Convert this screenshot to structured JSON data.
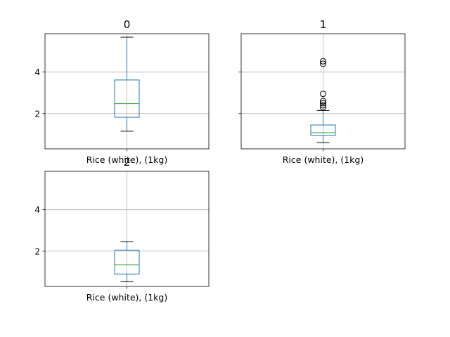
{
  "figure": {
    "background": "#ffffff"
  },
  "chart_data": [
    {
      "type": "boxplot",
      "title": "0",
      "categories": [
        "Rice (white), (1kg)"
      ],
      "ylim": [
        0.3,
        5.85
      ],
      "yticks": [
        2,
        4
      ],
      "grid": true,
      "boxes": [
        {
          "category": "Rice (white), (1kg)",
          "whisker_low": 1.15,
          "q1": 1.82,
          "median": 2.48,
          "q3": 3.62,
          "whisker_high": 5.68,
          "outliers": []
        }
      ]
    },
    {
      "type": "boxplot",
      "title": "1",
      "categories": [
        "Rice (white), (1kg)"
      ],
      "ylim": [
        0.3,
        5.85
      ],
      "yticks": [
        2,
        4
      ],
      "show_tick_labels": false,
      "grid": true,
      "boxes": [
        {
          "category": "Rice (white), (1kg)",
          "whisker_low": 0.6,
          "q1": 0.95,
          "median": 1.08,
          "q3": 1.45,
          "whisker_high": 2.15,
          "outliers": [
            2.3,
            2.4,
            2.5,
            2.6,
            2.95,
            4.4,
            4.52
          ]
        }
      ]
    },
    {
      "type": "boxplot",
      "title": "2",
      "categories": [
        "Rice (white), (1kg)"
      ],
      "ylim": [
        0.3,
        5.85
      ],
      "yticks": [
        2,
        4
      ],
      "grid": true,
      "boxes": [
        {
          "category": "Rice (white), (1kg)",
          "whisker_low": 0.55,
          "q1": 0.9,
          "median": 1.35,
          "q3": 2.05,
          "whisker_high": 2.45,
          "outliers": []
        }
      ]
    }
  ],
  "colors": {
    "box": "#1f77b4",
    "median": "#2ca02c",
    "whisker": "#000000",
    "grid": "#b0b0b0",
    "axis": "#000000"
  }
}
